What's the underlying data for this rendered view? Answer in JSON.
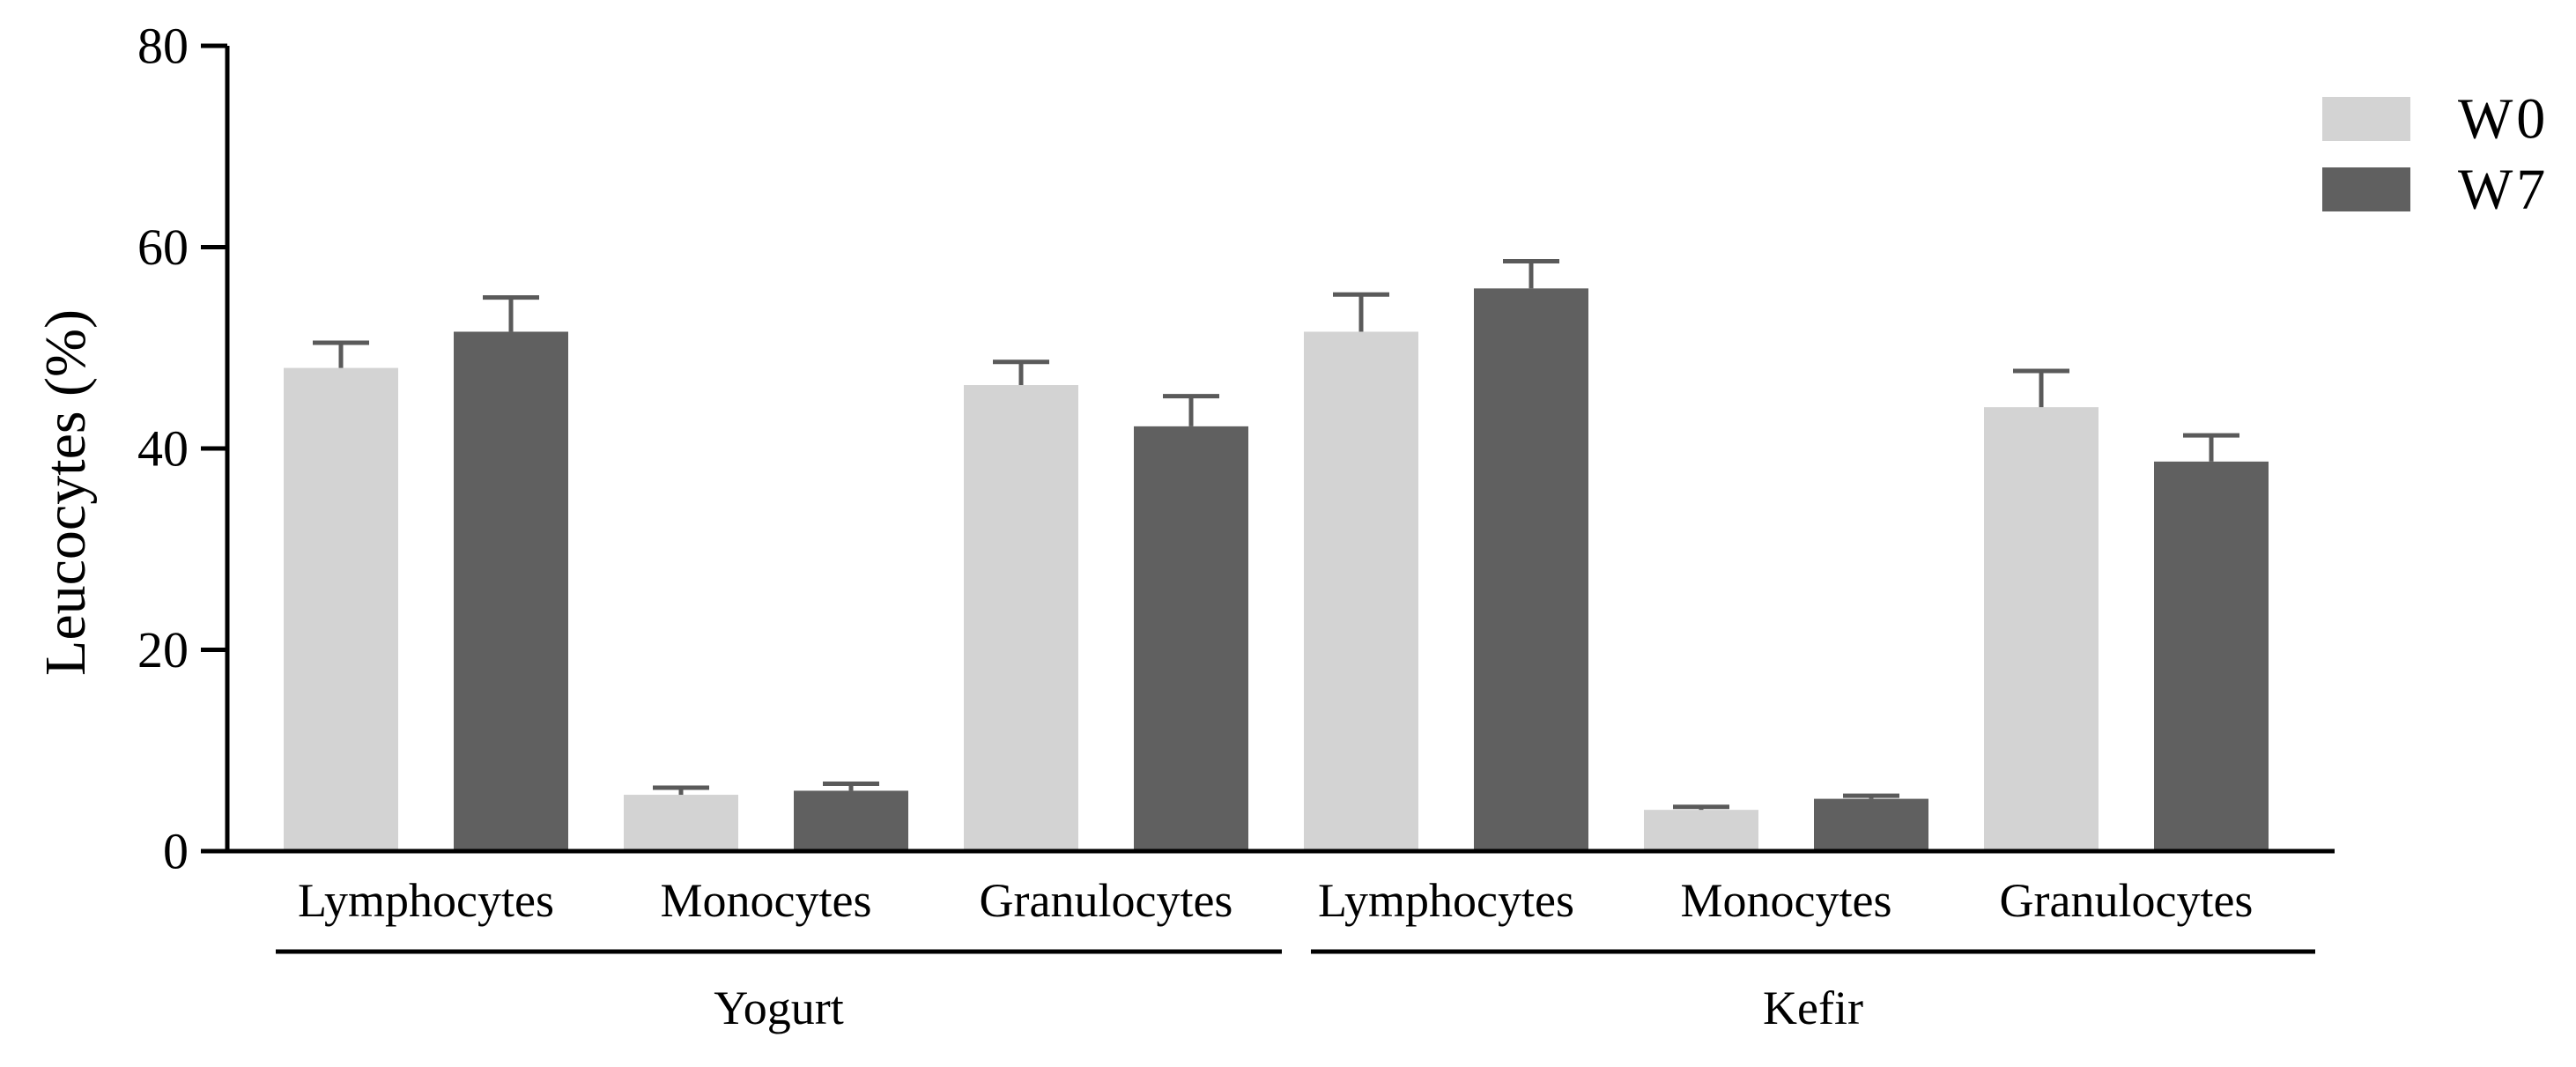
{
  "chart_data": {
    "type": "bar",
    "title": "",
    "xlabel": "",
    "ylabel": "Leucocytes (%)",
    "ylim": [
      0,
      80
    ],
    "yticks": [
      0,
      20,
      40,
      60,
      80
    ],
    "grid": false,
    "legend_position": "top-right",
    "groups": [
      {
        "label": "Yogurt",
        "categories": [
          "Lymphocytes",
          "Monocytes",
          "Granulocytes"
        ]
      },
      {
        "label": "Kefir",
        "categories": [
          "Lymphocytes",
          "Monocytes",
          "Granulocytes"
        ]
      }
    ],
    "series": [
      {
        "name": "W0",
        "color": "#d3d3d3",
        "values": [
          48.0,
          5.6,
          46.3,
          51.6,
          4.1,
          44.1
        ],
        "errors": [
          2.5,
          0.7,
          2.3,
          3.7,
          0.3,
          3.6
        ]
      },
      {
        "name": "W7",
        "color": "#606060",
        "values": [
          51.6,
          6.0,
          42.2,
          55.9,
          5.2,
          38.7
        ],
        "errors": [
          3.4,
          0.7,
          3.0,
          2.7,
          0.3,
          2.6
        ]
      }
    ]
  }
}
